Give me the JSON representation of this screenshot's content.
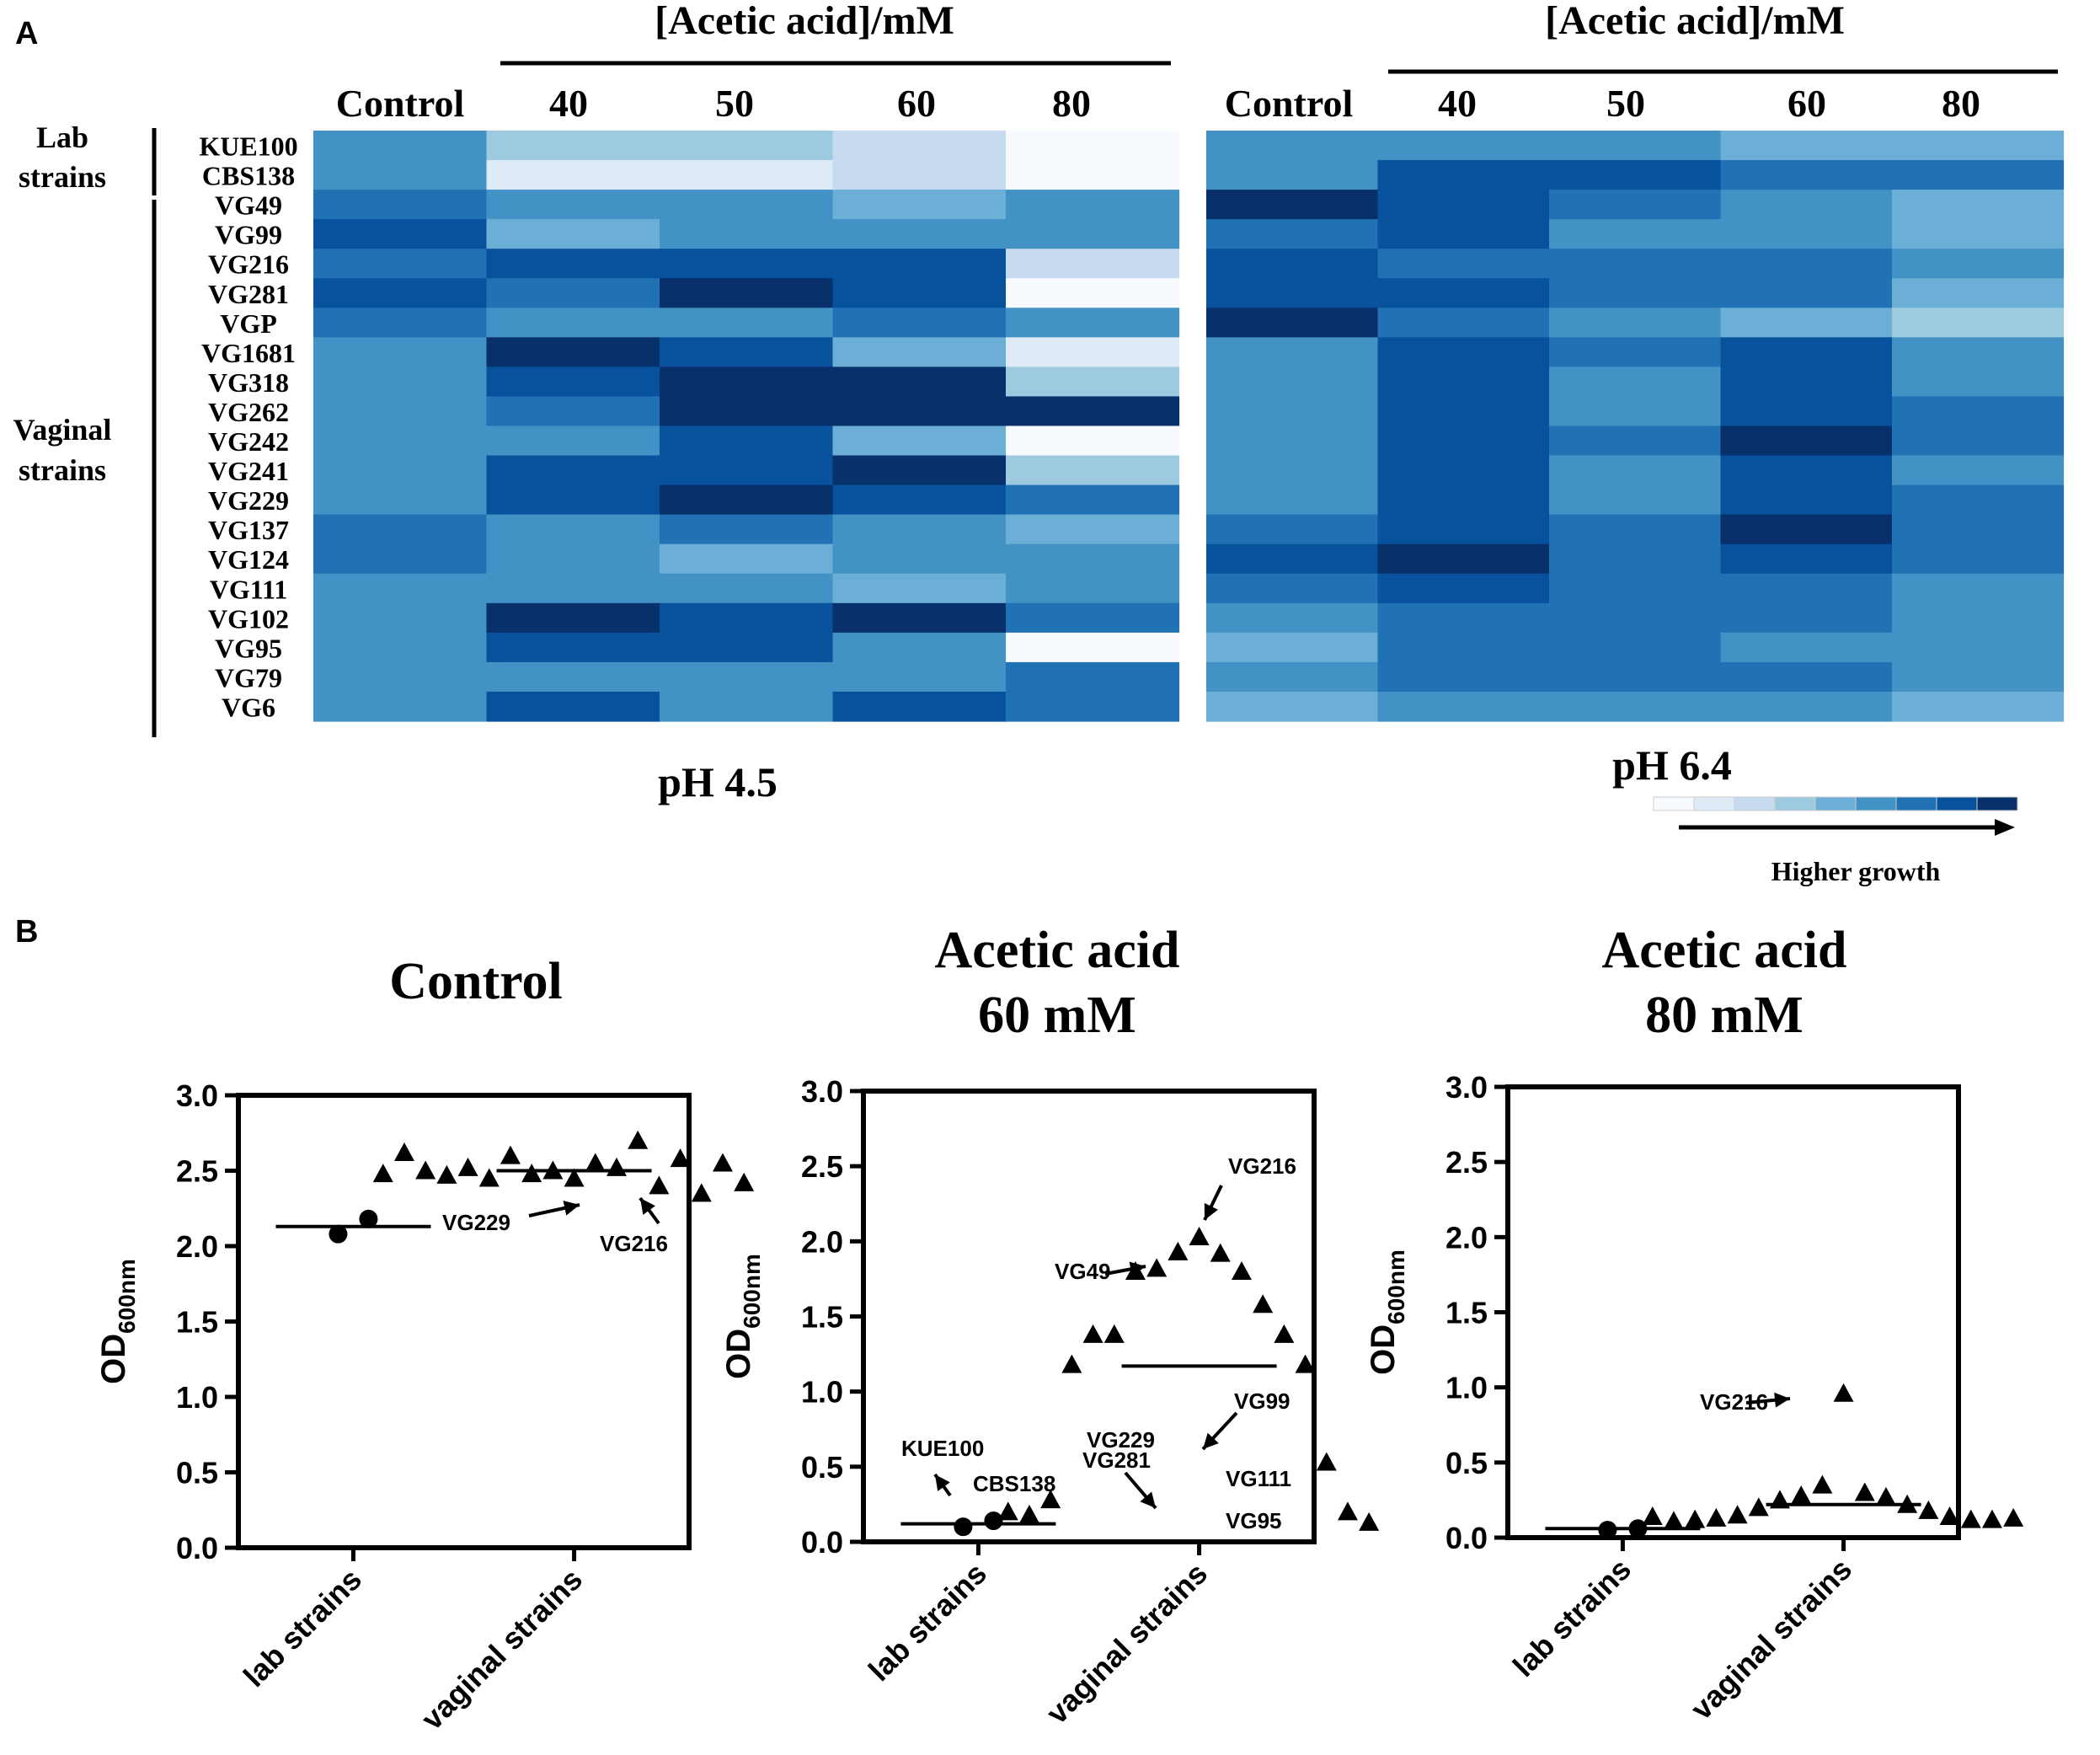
{
  "figure": {
    "panel_a_label": "A",
    "panel_b_label": "B"
  },
  "palette": [
    "#f7fbff",
    "#deebf7",
    "#c6dbef",
    "#9ecae1",
    "#6baed6",
    "#4292c6",
    "#2171b5",
    "#08519c",
    "#08306b"
  ],
  "chart_data": [
    {
      "type": "heatmap",
      "id": "ph45",
      "title": "pH 4.5",
      "header": "[Acetic acid]/mM",
      "columns": [
        "Control",
        "40",
        "50",
        "60",
        "80"
      ],
      "rows": [
        "KUE100",
        "CBS138",
        "VG49",
        "VG99",
        "VG216",
        "VG281",
        "VGP",
        "VG1681",
        "VG318",
        "VG262",
        "VG242",
        "VG241",
        "VG229",
        "VG137",
        "VG124",
        "VG111",
        "VG102",
        "VG95",
        "VG79",
        "VG6"
      ],
      "values": [
        [
          5,
          3,
          3,
          2,
          0
        ],
        [
          5,
          1,
          1,
          2,
          0
        ],
        [
          6,
          5,
          5,
          4,
          5
        ],
        [
          7,
          4,
          5,
          5,
          5
        ],
        [
          6,
          7,
          7,
          7,
          2
        ],
        [
          7,
          6,
          8,
          7,
          0
        ],
        [
          6,
          5,
          5,
          6,
          5
        ],
        [
          5,
          8,
          7,
          4,
          1
        ],
        [
          5,
          7,
          8,
          8,
          3
        ],
        [
          5,
          6,
          8,
          8,
          8
        ],
        [
          5,
          5,
          7,
          4,
          0
        ],
        [
          5,
          7,
          7,
          8,
          3
        ],
        [
          5,
          7,
          8,
          7,
          6
        ],
        [
          6,
          5,
          6,
          5,
          4
        ],
        [
          6,
          5,
          4,
          5,
          5
        ],
        [
          5,
          5,
          5,
          4,
          5
        ],
        [
          5,
          8,
          7,
          8,
          6
        ],
        [
          5,
          7,
          7,
          5,
          0
        ],
        [
          5,
          5,
          5,
          5,
          6
        ],
        [
          5,
          7,
          5,
          7,
          6
        ]
      ],
      "value_scale": "0-8 (higher = more growth)"
    },
    {
      "type": "heatmap",
      "id": "ph64",
      "title": "pH 6.4",
      "header": "[Acetic acid]/mM",
      "columns": [
        "Control",
        "40",
        "50",
        "60",
        "80"
      ],
      "rows": [
        "KUE100",
        "CBS138",
        "VG49",
        "VG99",
        "VG216",
        "VG281",
        "VGP",
        "VG1681",
        "VG318",
        "VG262",
        "VG242",
        "VG241",
        "VG229",
        "VG137",
        "VG124",
        "VG111",
        "VG102",
        "VG95",
        "VG79",
        "VG6"
      ],
      "values": [
        [
          5,
          5,
          5,
          4,
          4
        ],
        [
          5,
          7,
          7,
          6,
          6
        ],
        [
          8,
          7,
          6,
          5,
          4
        ],
        [
          6,
          7,
          5,
          5,
          4
        ],
        [
          7,
          6,
          6,
          6,
          5
        ],
        [
          7,
          7,
          6,
          6,
          4
        ],
        [
          8,
          6,
          5,
          4,
          3
        ],
        [
          5,
          7,
          6,
          7,
          5
        ],
        [
          5,
          7,
          5,
          7,
          5
        ],
        [
          5,
          7,
          5,
          7,
          6
        ],
        [
          5,
          7,
          6,
          8,
          6
        ],
        [
          5,
          7,
          5,
          7,
          5
        ],
        [
          5,
          7,
          5,
          7,
          6
        ],
        [
          6,
          7,
          6,
          8,
          6
        ],
        [
          7,
          8,
          6,
          7,
          6
        ],
        [
          6,
          7,
          6,
          6,
          5
        ],
        [
          5,
          6,
          6,
          6,
          5
        ],
        [
          4,
          6,
          6,
          5,
          5
        ],
        [
          5,
          6,
          6,
          6,
          5
        ],
        [
          4,
          5,
          5,
          5,
          4
        ]
      ],
      "value_scale": "0-8 (higher = more growth)"
    },
    {
      "type": "scatter",
      "id": "control",
      "title": [
        "Control"
      ],
      "ylabel": "OD",
      "ylabel_sub": "600nm",
      "ylim": [
        0,
        3
      ],
      "yticks": [
        "0.0",
        "0.5",
        "1.0",
        "1.5",
        "2.0",
        "2.5",
        "3.0"
      ],
      "categories": [
        "lab strains",
        "vaginal strains"
      ],
      "series": [
        {
          "name": "lab strains",
          "marker": "circle",
          "values": [
            2.08,
            2.18
          ],
          "mean": 2.13
        },
        {
          "name": "vaginal strains",
          "marker": "triangle",
          "values": [
            2.45,
            2.5,
            2.55,
            2.48,
            2.52,
            2.6,
            2.7,
            2.45,
            2.4,
            2.52,
            2.58,
            2.47,
            2.35,
            2.5,
            2.55,
            2.62,
            2.42,
            2.48
          ],
          "mean": 2.5
        }
      ],
      "annotations": [
        {
          "text": "VG229",
          "category": 1,
          "value": 2.3
        },
        {
          "text": "VG216",
          "category": 1,
          "value": 2.4
        }
      ]
    },
    {
      "type": "scatter",
      "id": "aa60",
      "title": [
        "Acetic acid",
        "60 mM"
      ],
      "ylabel": "OD",
      "ylabel_sub": "600nm",
      "ylim": [
        0,
        3
      ],
      "yticks": [
        "0.0",
        "0.5",
        "1.0",
        "1.5",
        "2.0",
        "2.5",
        "3.0"
      ],
      "categories": [
        "lab strains",
        "vaginal strains"
      ],
      "series": [
        {
          "name": "lab strains",
          "marker": "circle",
          "values": [
            0.1,
            0.14
          ],
          "mean": 0.12
        },
        {
          "name": "vaginal strains",
          "marker": "triangle",
          "values": [
            2.03,
            1.93,
            1.92,
            1.82,
            1.8,
            1.8,
            1.58,
            1.38,
            1.38,
            1.38,
            1.18,
            1.18,
            0.53,
            0.28,
            0.2,
            0.18,
            0.13,
            0.2
          ],
          "mean": 1.17
        }
      ],
      "annotations": [
        {
          "text": "VG216",
          "category": 1,
          "value": 2.05
        },
        {
          "text": "VG49",
          "category": 1,
          "value": 1.8
        },
        {
          "text": "VG99",
          "category": 1,
          "value": 0.53
        },
        {
          "text": "VG229",
          "category": 1,
          "value": 0.2
        },
        {
          "text": "VG281",
          "category": 1,
          "value": 0.2
        },
        {
          "text": "VG111",
          "category": 1,
          "value": 0.28
        },
        {
          "text": "VG95",
          "category": 1,
          "value": 0.18
        },
        {
          "text": "KUE100",
          "category": 0,
          "value": 0.1
        },
        {
          "text": "CBS138",
          "category": 0,
          "value": 0.14
        }
      ]
    },
    {
      "type": "scatter",
      "id": "aa80",
      "title": [
        "Acetic acid",
        "80 mM"
      ],
      "ylabel": "OD",
      "ylabel_sub": "600nm",
      "ylim": [
        0,
        3
      ],
      "yticks": [
        "0.0",
        "0.5",
        "1.0",
        "1.5",
        "2.0",
        "2.5",
        "3.0"
      ],
      "categories": [
        "lab strains",
        "vaginal strains"
      ],
      "series": [
        {
          "name": "lab strains",
          "marker": "circle",
          "values": [
            0.05,
            0.06
          ],
          "mean": 0.06
        },
        {
          "name": "vaginal strains",
          "marker": "triangle",
          "values": [
            0.96,
            0.35,
            0.3,
            0.28,
            0.27,
            0.25,
            0.22,
            0.2,
            0.18,
            0.15,
            0.14,
            0.13,
            0.12,
            0.12,
            0.12,
            0.11,
            0.13,
            0.14
          ],
          "mean": 0.22
        }
      ],
      "annotations": [
        {
          "text": "VG216",
          "category": 1,
          "value": 0.96
        }
      ]
    }
  ],
  "row_groups": [
    {
      "label_lines": [
        "Lab",
        "strains"
      ]
    },
    {
      "label_lines": [
        "Vaginal",
        "strains"
      ]
    }
  ],
  "legend": {
    "label": "Higher growth"
  }
}
